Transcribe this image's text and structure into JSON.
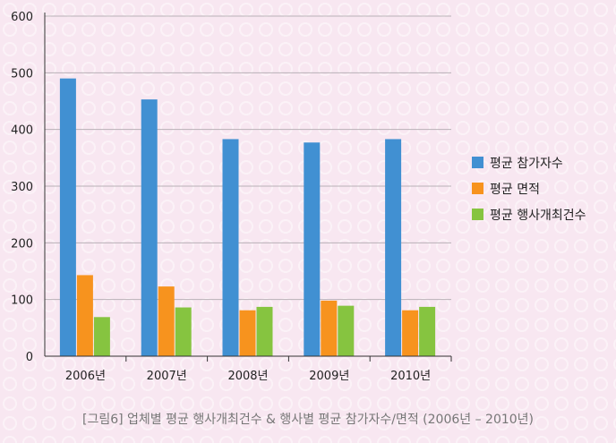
{
  "chart_data": {
    "type": "bar",
    "categories": [
      "2006년",
      "2007년",
      "2008년",
      "2009년",
      "2010년"
    ],
    "series": [
      {
        "name": "평균 참가자수",
        "values": [
          490,
          453,
          383,
          377,
          383
        ],
        "color": "#4190d2"
      },
      {
        "name": "평균 면적",
        "values": [
          143,
          123,
          81,
          98,
          81
        ],
        "color": "#f7931e"
      },
      {
        "name": "평균 행사개최건수",
        "values": [
          69,
          86,
          87,
          89,
          87
        ],
        "color": "#86c440"
      }
    ],
    "ylim": [
      0,
      600
    ],
    "yticks": [
      0,
      100,
      200,
      300,
      400,
      500,
      600
    ],
    "grid": true,
    "legend_position": "right"
  },
  "caption": "[그림6] 업체별 평균 행사개최건수 & 행사별 평균 참가자수/면적 (2006년 – 2010년)"
}
